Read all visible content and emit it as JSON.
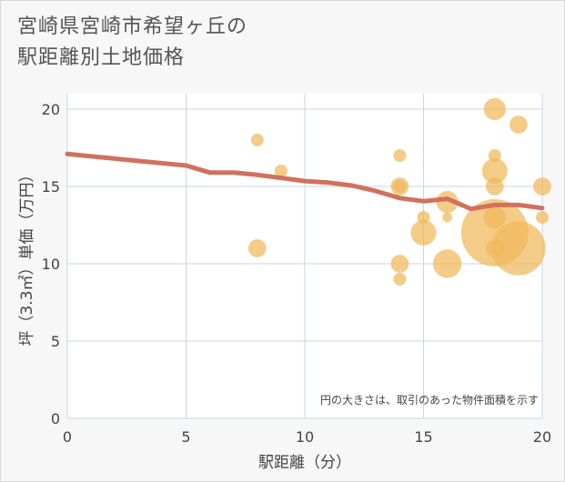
{
  "title_line1": "宮崎県宮崎市希望ヶ丘の",
  "title_line2": "駅距離別土地価格",
  "chart_data": {
    "type": "scatter",
    "xlabel": "駅距離（分）",
    "ylabel": "坪（3.3㎡）単価（万円）",
    "xlim": [
      0,
      20
    ],
    "ylim": [
      0,
      20
    ],
    "x_ticks": [
      0,
      5,
      10,
      15,
      20
    ],
    "y_ticks": [
      0,
      5,
      10,
      15,
      20
    ],
    "grid": true,
    "note": "円の大きさは、取引のあった物件面積を示す",
    "colors": {
      "points": "#f0b85a",
      "trend": "#d2705e",
      "plot_bg": "#ffffff",
      "grid": "#c8d6e2"
    },
    "points": [
      {
        "x": 8,
        "y": 18,
        "size": 1
      },
      {
        "x": 8,
        "y": 11,
        "size": 2
      },
      {
        "x": 9,
        "y": 16,
        "size": 1
      },
      {
        "x": 14,
        "y": 17,
        "size": 1
      },
      {
        "x": 14,
        "y": 15,
        "size": 2
      },
      {
        "x": 14,
        "y": 15,
        "size": 1
      },
      {
        "x": 14,
        "y": 10,
        "size": 2
      },
      {
        "x": 14,
        "y": 9,
        "size": 1
      },
      {
        "x": 15,
        "y": 13,
        "size": 1
      },
      {
        "x": 15,
        "y": 12,
        "size": 4
      },
      {
        "x": 16,
        "y": 14,
        "size": 3
      },
      {
        "x": 16,
        "y": 13,
        "size": 0.6
      },
      {
        "x": 16,
        "y": 10,
        "size": 5
      },
      {
        "x": 18,
        "y": 20,
        "size": 3
      },
      {
        "x": 18,
        "y": 17,
        "size": 1
      },
      {
        "x": 18,
        "y": 16,
        "size": 4
      },
      {
        "x": 18,
        "y": 15,
        "size": 2
      },
      {
        "x": 18,
        "y": 13,
        "size": 3
      },
      {
        "x": 18,
        "y": 12,
        "size": 28
      },
      {
        "x": 18,
        "y": 11,
        "size": 2
      },
      {
        "x": 19,
        "y": 19,
        "size": 2
      },
      {
        "x": 19,
        "y": 11,
        "size": 18
      },
      {
        "x": 20,
        "y": 15,
        "size": 2
      },
      {
        "x": 20,
        "y": 13,
        "size": 1
      }
    ],
    "trend": {
      "x": [
        0,
        1,
        2,
        3,
        4,
        5,
        6,
        7,
        8,
        9,
        10,
        11,
        12,
        13,
        14,
        15,
        16,
        17,
        18,
        19,
        20
      ],
      "y": [
        17.1,
        16.95,
        16.8,
        16.65,
        16.5,
        16.35,
        15.9,
        15.9,
        15.75,
        15.55,
        15.35,
        15.25,
        15.05,
        14.7,
        14.25,
        14.05,
        14.2,
        13.55,
        13.8,
        13.8,
        13.6
      ]
    }
  }
}
